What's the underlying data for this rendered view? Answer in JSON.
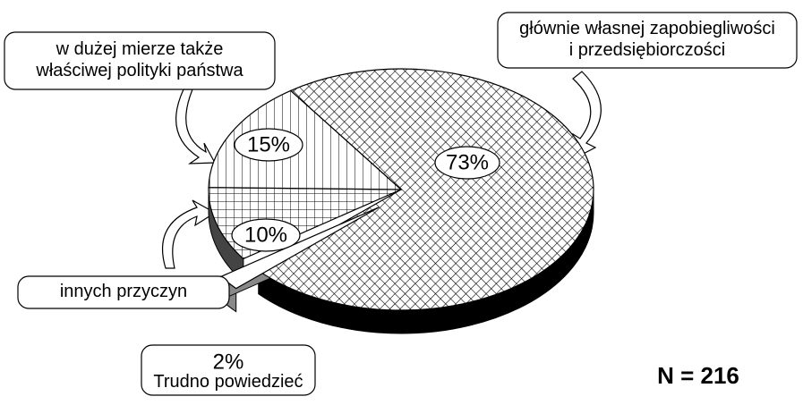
{
  "chart_data": {
    "type": "pie",
    "categories": [
      "głównie własnej zapobiegliwości\ni przedsiębiorczości",
      "Trudno powiedzieć",
      "innych przyczyn",
      "w dużej mierze także\nwłaściwej polityki państwa"
    ],
    "values": [
      73,
      2,
      10,
      15
    ],
    "value_labels": [
      "73%",
      "2%",
      "10%",
      "15%"
    ],
    "fills": [
      "crosshatch",
      "white",
      "grid",
      "vertical"
    ],
    "annotation": "N = 216"
  }
}
